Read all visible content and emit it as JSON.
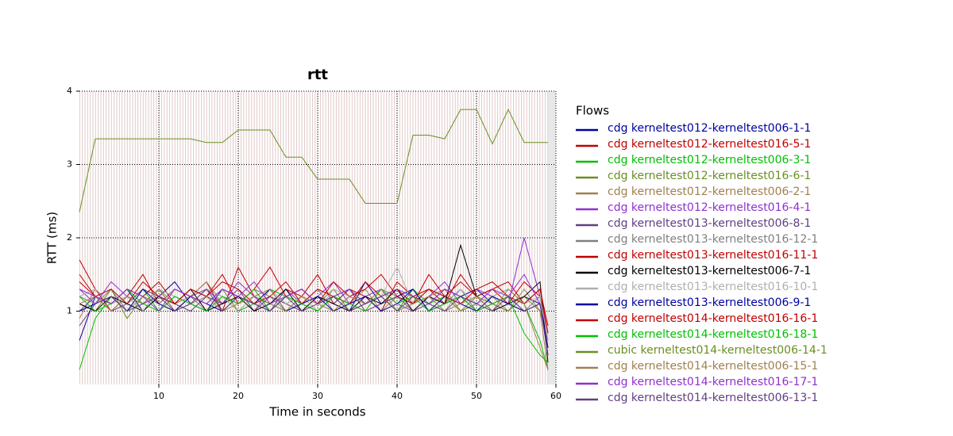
{
  "chart_data": {
    "type": "line",
    "title": "rtt",
    "xlabel": "Time in seconds",
    "ylabel": "RTT (ms)",
    "legend_title": "Flows",
    "legend": "right",
    "grid": true,
    "xlim": [
      0,
      60
    ],
    "xticks": [
      10,
      20,
      30,
      40,
      50,
      60
    ],
    "ylim": [
      0,
      4
    ],
    "yticks": [
      1,
      2,
      3,
      4
    ],
    "x": [
      0,
      2,
      4,
      6,
      8,
      10,
      12,
      14,
      16,
      18,
      20,
      22,
      24,
      26,
      28,
      30,
      32,
      34,
      36,
      38,
      40,
      42,
      44,
      46,
      48,
      50,
      52,
      54,
      56,
      58,
      59
    ],
    "series": [
      {
        "name": "cdg kerneltest012-kerneltest006-1-1",
        "color": "#0000a0",
        "values": [
          0.6,
          1.2,
          1.1,
          1.3,
          1.0,
          1.2,
          1.4,
          1.1,
          1.0,
          1.3,
          1.2,
          1.1,
          1.0,
          1.2,
          1.3,
          1.1,
          1.2,
          1.0,
          1.4,
          1.1,
          1.2,
          1.3,
          1.0,
          1.1,
          1.2,
          1.3,
          1.1,
          1.0,
          1.2,
          1.1,
          0.5
        ]
      },
      {
        "name": "cdg kerneltest012-kerneltest016-5-1",
        "color": "#c00000",
        "values": [
          1.7,
          1.3,
          1.0,
          1.2,
          1.5,
          1.1,
          1.3,
          1.2,
          1.4,
          1.0,
          1.6,
          1.2,
          1.1,
          1.3,
          1.2,
          1.5,
          1.1,
          1.3,
          1.2,
          1.0,
          1.4,
          1.2,
          1.3,
          1.1,
          1.5,
          1.2,
          1.3,
          1.4,
          1.1,
          1.3,
          0.8
        ]
      },
      {
        "name": "cdg kerneltest012-kerneltest006-3-1",
        "color": "#00c000",
        "values": [
          0.2,
          0.9,
          1.2,
          1.1,
          1.3,
          1.0,
          1.2,
          1.1,
          1.3,
          1.2,
          1.0,
          1.1,
          1.3,
          1.2,
          1.1,
          1.0,
          1.2,
          1.3,
          1.1,
          1.2,
          1.0,
          1.3,
          1.1,
          1.2,
          1.0,
          1.1,
          1.2,
          1.3,
          1.1,
          0.6,
          0.2
        ]
      },
      {
        "name": "cdg kerneltest012-kerneltest016-6-1",
        "color": "#6b8e23",
        "values": [
          1.1,
          1.0,
          1.3,
          0.9,
          1.2,
          1.1,
          1.0,
          1.2,
          1.1,
          1.3,
          1.0,
          1.2,
          1.1,
          1.0,
          1.2,
          1.1,
          1.3,
          1.0,
          1.1,
          1.2,
          1.0,
          1.1,
          1.3,
          1.2,
          1.0,
          1.2,
          1.1,
          1.0,
          1.2,
          1.0,
          0.6
        ]
      },
      {
        "name": "cdg kerneltest012-kerneltest006-2-1",
        "color": "#a08050",
        "values": [
          0.9,
          1.3,
          1.1,
          1.2,
          1.0,
          1.3,
          1.1,
          1.2,
          1.4,
          1.1,
          1.2,
          1.0,
          1.3,
          1.1,
          1.2,
          1.0,
          1.2,
          1.1,
          1.3,
          1.0,
          1.2,
          1.1,
          1.2,
          1.3,
          1.0,
          1.1,
          1.2,
          1.0,
          1.3,
          1.0,
          0.2
        ]
      },
      {
        "name": "cdg kerneltest012-kerneltest016-4-1",
        "color": "#9030d0",
        "values": [
          1.3,
          1.1,
          1.4,
          1.2,
          1.1,
          1.3,
          1.0,
          1.2,
          1.3,
          1.1,
          1.4,
          1.2,
          1.0,
          1.3,
          1.1,
          1.2,
          1.4,
          1.1,
          1.2,
          1.3,
          1.1,
          1.0,
          1.2,
          1.4,
          1.1,
          1.3,
          1.2,
          1.1,
          2.0,
          1.2,
          0.7
        ]
      },
      {
        "name": "cdg kerneltest013-kerneltest006-8-1",
        "color": "#604080",
        "values": [
          1.0,
          1.2,
          1.0,
          1.1,
          1.3,
          1.2,
          1.1,
          1.0,
          1.2,
          1.1,
          1.3,
          1.0,
          1.2,
          1.1,
          1.0,
          1.2,
          1.1,
          1.3,
          1.0,
          1.1,
          1.2,
          1.0,
          1.1,
          1.3,
          1.2,
          1.0,
          1.1,
          1.2,
          1.0,
          1.1,
          0.4
        ]
      },
      {
        "name": "cdg kerneltest013-kerneltest016-12-1",
        "color": "#808080",
        "values": [
          1.2,
          1.1,
          1.3,
          1.0,
          1.2,
          1.1,
          1.3,
          1.2,
          1.0,
          1.2,
          1.1,
          1.3,
          1.2,
          1.0,
          1.1,
          1.3,
          1.0,
          1.2,
          1.1,
          1.3,
          1.2,
          1.0,
          1.2,
          1.1,
          1.3,
          1.0,
          1.2,
          1.1,
          1.0,
          1.2,
          0.5
        ]
      },
      {
        "name": "cdg kerneltest013-kerneltest016-11-1",
        "color": "#c00000",
        "values": [
          1.4,
          1.2,
          1.1,
          1.3,
          1.2,
          1.4,
          1.1,
          1.3,
          1.2,
          1.5,
          1.1,
          1.3,
          1.6,
          1.2,
          1.3,
          1.1,
          1.4,
          1.2,
          1.3,
          1.5,
          1.2,
          1.1,
          1.3,
          1.2,
          1.4,
          1.2,
          1.3,
          1.1,
          1.4,
          1.2,
          0.6
        ]
      },
      {
        "name": "cdg kerneltest013-kerneltest006-7-1",
        "color": "#000000",
        "values": [
          1.1,
          1.0,
          1.2,
          1.1,
          1.0,
          1.2,
          1.1,
          1.3,
          1.0,
          1.1,
          1.2,
          1.0,
          1.1,
          1.3,
          1.0,
          1.2,
          1.1,
          1.0,
          1.2,
          1.1,
          1.3,
          1.0,
          1.2,
          1.1,
          1.9,
          1.2,
          1.0,
          1.1,
          1.2,
          1.4,
          0.3
        ]
      },
      {
        "name": "cdg kerneltest013-kerneltest016-10-1",
        "color": "#b0b0b0",
        "values": [
          1.2,
          1.3,
          1.1,
          1.2,
          1.0,
          1.3,
          1.2,
          1.1,
          1.3,
          1.2,
          1.0,
          1.2,
          1.3,
          1.1,
          1.2,
          1.0,
          1.3,
          1.2,
          1.1,
          1.2,
          1.6,
          1.1,
          1.2,
          1.0,
          1.3,
          1.1,
          1.2,
          1.3,
          1.1,
          1.2,
          0.6
        ]
      },
      {
        "name": "cdg kerneltest013-kerneltest006-9-1",
        "color": "#0000a0",
        "values": [
          1.0,
          1.1,
          1.2,
          1.0,
          1.3,
          1.1,
          1.0,
          1.2,
          1.1,
          1.0,
          1.2,
          1.1,
          1.3,
          1.0,
          1.1,
          1.2,
          1.0,
          1.1,
          1.2,
          1.0,
          1.1,
          1.3,
          1.0,
          1.2,
          1.1,
          1.0,
          1.2,
          1.1,
          1.0,
          1.1,
          0.5
        ]
      },
      {
        "name": "cdg kerneltest014-kerneltest016-16-1",
        "color": "#c00000",
        "values": [
          1.5,
          1.2,
          1.3,
          1.1,
          1.4,
          1.2,
          1.1,
          1.3,
          1.2,
          1.4,
          1.3,
          1.1,
          1.2,
          1.4,
          1.1,
          1.3,
          1.2,
          1.1,
          1.4,
          1.2,
          1.3,
          1.1,
          1.5,
          1.2,
          1.1,
          1.3,
          1.4,
          1.2,
          1.1,
          1.3,
          0.7
        ]
      },
      {
        "name": "cdg kerneltest014-kerneltest016-18-1",
        "color": "#00c000",
        "values": [
          1.2,
          1.0,
          1.1,
          1.3,
          1.1,
          1.0,
          1.2,
          1.1,
          1.0,
          1.2,
          1.1,
          1.3,
          1.0,
          1.2,
          1.1,
          1.0,
          1.2,
          1.1,
          1.0,
          1.3,
          1.1,
          1.2,
          1.0,
          1.1,
          1.2,
          1.0,
          1.1,
          1.2,
          0.7,
          0.4,
          0.3
        ]
      },
      {
        "name": "cubic kerneltest014-kerneltest006-14-1",
        "color": "#6b8e23",
        "values": [
          2.35,
          3.35,
          3.35,
          3.35,
          3.35,
          3.35,
          3.35,
          3.35,
          3.3,
          3.3,
          3.47,
          3.47,
          3.47,
          3.1,
          3.1,
          2.8,
          2.8,
          2.8,
          2.47,
          2.47,
          2.47,
          3.4,
          3.4,
          3.35,
          3.75,
          3.75,
          3.28,
          3.75,
          3.3,
          3.3,
          3.3
        ]
      },
      {
        "name": "cdg kerneltest014-kerneltest006-15-1",
        "color": "#a08050",
        "values": [
          1.1,
          1.2,
          1.0,
          1.2,
          1.1,
          1.3,
          1.0,
          1.1,
          1.2,
          1.0,
          1.1,
          1.2,
          1.3,
          1.0,
          1.2,
          1.1,
          1.0,
          1.2,
          1.1,
          1.3,
          1.0,
          1.1,
          1.2,
          1.0,
          1.1,
          1.2,
          1.0,
          1.3,
          1.1,
          0.5,
          0.2
        ]
      },
      {
        "name": "cdg kerneltest014-kerneltest016-17-1",
        "color": "#9030d0",
        "values": [
          1.3,
          1.2,
          1.1,
          1.3,
          1.2,
          1.0,
          1.3,
          1.2,
          1.1,
          1.3,
          1.2,
          1.4,
          1.1,
          1.2,
          1.3,
          1.1,
          1.2,
          1.3,
          1.1,
          1.2,
          1.3,
          1.2,
          1.1,
          1.3,
          1.2,
          1.1,
          1.3,
          1.2,
          1.5,
          1.1,
          0.4
        ]
      },
      {
        "name": "cdg kerneltest014-kerneltest006-13-1",
        "color": "#604080",
        "values": [
          0.8,
          1.1,
          1.2,
          1.0,
          1.1,
          1.2,
          1.0,
          1.1,
          1.3,
          1.0,
          1.2,
          1.1,
          1.0,
          1.2,
          1.0,
          1.1,
          1.2,
          1.0,
          1.1,
          1.2,
          1.0,
          1.2,
          1.1,
          1.0,
          1.2,
          1.1,
          1.0,
          1.2,
          1.0,
          1.1,
          0.4
        ]
      }
    ]
  }
}
